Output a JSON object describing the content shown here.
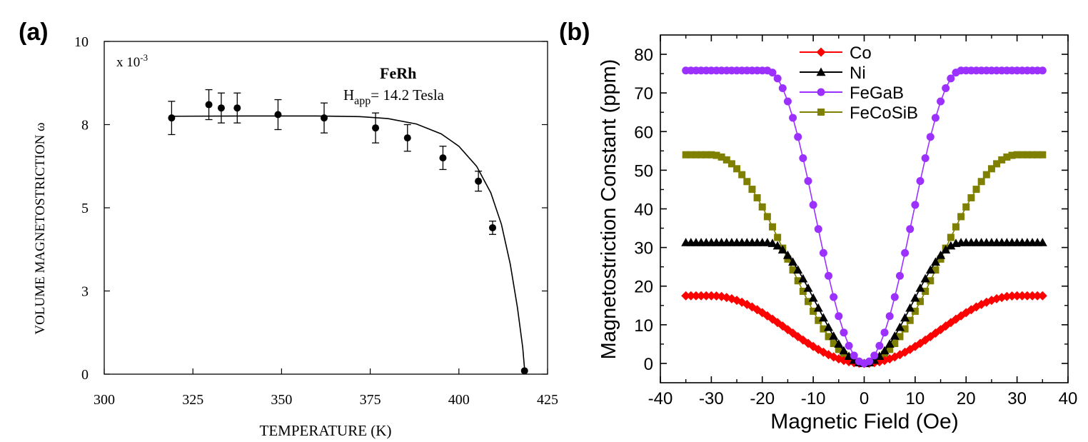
{
  "chart_data": [
    {
      "panel_label": "(a)",
      "type": "scatter",
      "title": "FeRh",
      "annotation_main": "H",
      "annotation_sub": "app",
      "annotation_rest": "= 14.2 Tesla",
      "exponent_label": "x 10",
      "exponent_power": "-3",
      "xlabel": "TEMPERATURE  (K)",
      "ylabel": "VOLUME MAGNETOSTRICTION  ω",
      "xlim": [
        300,
        425
      ],
      "ylim": [
        0,
        10
      ],
      "xticks": [
        300,
        325,
        350,
        375,
        400,
        425
      ],
      "yticks": [
        0,
        2.5,
        5,
        7.5,
        10
      ],
      "ytick_labels": [
        "0",
        "3",
        "5",
        "8",
        "10"
      ],
      "points": [
        {
          "x": 319,
          "y": 7.7,
          "err": 0.5
        },
        {
          "x": 329.5,
          "y": 8.1,
          "err": 0.45
        },
        {
          "x": 333,
          "y": 8.0,
          "err": 0.45
        },
        {
          "x": 337.5,
          "y": 8.0,
          "err": 0.45
        },
        {
          "x": 349,
          "y": 7.8,
          "err": 0.45
        },
        {
          "x": 362,
          "y": 7.7,
          "err": 0.45
        },
        {
          "x": 376.5,
          "y": 7.4,
          "err": 0.45
        },
        {
          "x": 385.5,
          "y": 7.1,
          "err": 0.4
        },
        {
          "x": 395.5,
          "y": 6.5,
          "err": 0.35
        },
        {
          "x": 405.5,
          "y": 5.8,
          "err": 0.3
        },
        {
          "x": 409.5,
          "y": 4.4,
          "err": 0.2
        },
        {
          "x": 418.5,
          "y": 0.1,
          "err": 0
        }
      ],
      "fit_curve": [
        {
          "x": 319,
          "y": 7.75
        },
        {
          "x": 340,
          "y": 7.76
        },
        {
          "x": 360,
          "y": 7.76
        },
        {
          "x": 372,
          "y": 7.74
        },
        {
          "x": 380,
          "y": 7.68
        },
        {
          "x": 388,
          "y": 7.52
        },
        {
          "x": 395,
          "y": 7.22
        },
        {
          "x": 400,
          "y": 6.85
        },
        {
          "x": 405,
          "y": 6.25
        },
        {
          "x": 409,
          "y": 5.45
        },
        {
          "x": 412,
          "y": 4.5
        },
        {
          "x": 414.5,
          "y": 3.3
        },
        {
          "x": 416.5,
          "y": 2.0
        },
        {
          "x": 418,
          "y": 0.8
        },
        {
          "x": 418.6,
          "y": 0.05
        }
      ],
      "colors": {
        "marker": "#000000",
        "line": "#000000"
      }
    },
    {
      "panel_label": "(b)",
      "type": "line",
      "xlabel": "Magnetic Field (Oe)",
      "ylabel": "Magnetostriction Constant (ppm)",
      "xlim": [
        -40,
        40
      ],
      "ylim": [
        -5,
        85
      ],
      "xticks": [
        -40,
        -30,
        -20,
        -10,
        0,
        10,
        20,
        30,
        40
      ],
      "yticks": [
        0,
        10,
        20,
        30,
        40,
        50,
        60,
        70,
        80
      ],
      "legend_position": "top-left",
      "field_range": [
        -35,
        35
      ],
      "field_step": 1,
      "series": [
        {
          "name": "Co",
          "color": "#ff0000",
          "marker": "diamond",
          "saturation": 17.5,
          "knee": 30,
          "shape": "cos"
        },
        {
          "name": "Ni",
          "color": "#000000",
          "marker": "triangle",
          "saturation": 31.3,
          "knee": 19,
          "shape": "cos"
        },
        {
          "name": "FeGaB",
          "color": "#9b30ff",
          "marker": "circle",
          "saturation": 75.8,
          "knee": 19,
          "shape": "cos"
        },
        {
          "name": "FeCoSiB",
          "color": "#808000",
          "marker": "square",
          "saturation": 54.0,
          "knee": 30,
          "shape": "cos"
        }
      ]
    }
  ]
}
